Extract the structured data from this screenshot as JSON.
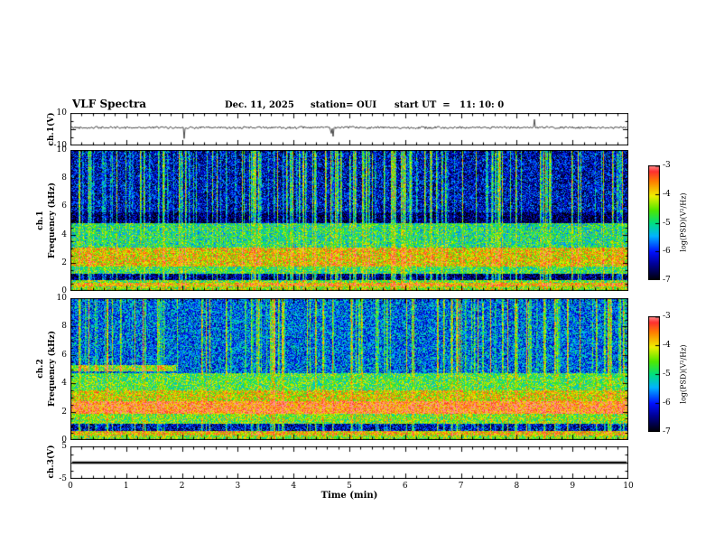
{
  "title": "VLF Spectra",
  "header": {
    "date": "Dec. 11, 2025",
    "station": "station= OUI",
    "start_ut": "start UT  =   11: 10: 0"
  },
  "x_axis": {
    "label": "Time (min)",
    "min": 0,
    "max": 10,
    "tick_labels": [
      "0",
      "1",
      "2",
      "3",
      "4",
      "5",
      "6",
      "7",
      "8",
      "9",
      "10"
    ]
  },
  "panels": {
    "ch1_wave": {
      "ylabel": "ch.1(V)",
      "ymin": -10,
      "ymax": 10,
      "ytick_labels": [
        "10",
        "-10"
      ]
    },
    "ch1_spec": {
      "ylabel_channel": "ch.1",
      "ylabel_axis": "Frequency (kHz)",
      "ymin": 0,
      "ymax": 10,
      "ytick_labels": [
        "10",
        "8",
        "6",
        "4",
        "2",
        "0"
      ]
    },
    "ch2_spec": {
      "ylabel_channel": "ch.2",
      "ylabel_axis": "Frequency (kHz)",
      "ymin": 0,
      "ymax": 10,
      "ytick_labels": [
        "10",
        "8",
        "6",
        "4",
        "2",
        "0"
      ]
    },
    "ch3_wave": {
      "ylabel": "ch.3(V)",
      "ymin": -5,
      "ymax": 5,
      "ytick_labels": [
        "5",
        "-5"
      ]
    }
  },
  "colorbar": {
    "label": "log(PSD)(V²/Hz)",
    "vmin": -7,
    "vmax": -3,
    "tick_labels": [
      "-3",
      "-4",
      "-5",
      "-6",
      "-7"
    ]
  },
  "chart_data": {
    "type": "heatmap",
    "description": "VLF spectrogram quicklook: ch.1 voltage trace, ch.1 and ch.2 frequency-time spectrograms (0-10 kHz over 0-10 min) with log PSD color scale -7..-3, ch.3 flat voltage trace at 0 V",
    "time_range_min": [
      0,
      10
    ],
    "freq_range_khz": [
      0,
      10
    ],
    "psd_log_range": [
      -7,
      -3
    ],
    "colormap_stops": [
      [
        -7.0,
        "#000000"
      ],
      [
        -6.45,
        "#000090"
      ],
      [
        -6.0,
        "#0010ff"
      ],
      [
        -5.45,
        "#00b4ff"
      ],
      [
        -5.0,
        "#00e080"
      ],
      [
        -4.55,
        "#50e800"
      ],
      [
        -4.05,
        "#f0f000"
      ],
      [
        -3.55,
        "#ff8000"
      ],
      [
        -3.2,
        "#ff3030"
      ],
      [
        -3.0,
        "#ff9090"
      ]
    ],
    "ch1_wave": {
      "mean_v": 1.0,
      "noise_v": 0.7,
      "spike_rate": 0.015,
      "spike_max_v": 5
    },
    "ch1_spec": {
      "noise": 0.85,
      "streak_density": 0.25,
      "streak_max": 2.0,
      "bands": [
        {
          "f": [
            0.0,
            0.3
          ],
          "level": -4.4
        },
        {
          "f": [
            0.3,
            0.6
          ],
          "level": -3.8
        },
        {
          "f": [
            0.6,
            0.8
          ],
          "level": -4.6
        },
        {
          "f": [
            0.8,
            1.25
          ],
          "level": -6.6
        },
        {
          "f": [
            1.25,
            1.7
          ],
          "level": -4.8
        },
        {
          "f": [
            1.7,
            3.1
          ],
          "level": -4.0
        },
        {
          "f": [
            3.1,
            4.8
          ],
          "level": -4.95
        },
        {
          "f": [
            4.8,
            5.6
          ],
          "level": -6.7
        },
        {
          "f": [
            5.6,
            10.0
          ],
          "level": -6.25
        }
      ],
      "features": []
    },
    "ch2_spec": {
      "noise": 0.85,
      "streak_density": 0.22,
      "streak_max": 1.8,
      "bands": [
        {
          "f": [
            0.0,
            0.3
          ],
          "level": -4.5
        },
        {
          "f": [
            0.3,
            0.65
          ],
          "level": -3.9
        },
        {
          "f": [
            0.65,
            1.15
          ],
          "level": -6.3
        },
        {
          "f": [
            1.15,
            1.85
          ],
          "level": -4.5
        },
        {
          "f": [
            1.85,
            2.75
          ],
          "level": -3.45
        },
        {
          "f": [
            2.75,
            3.5
          ],
          "level": -4.1
        },
        {
          "f": [
            3.5,
            4.7
          ],
          "level": -4.7
        },
        {
          "f": [
            4.7,
            10.0
          ],
          "level": -5.7
        }
      ],
      "features": [
        {
          "f": [
            4.85,
            5.3
          ],
          "t": [
            0.0,
            1.9
          ],
          "level": -4.4
        }
      ]
    },
    "ch3_wave": {
      "constant_v": 0
    }
  }
}
